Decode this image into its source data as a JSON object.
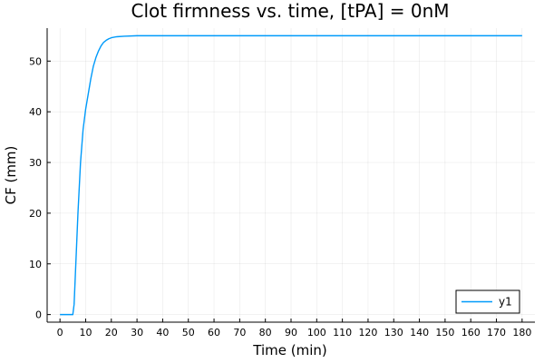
{
  "chart_data": {
    "type": "line",
    "title": "Clot firmness vs. time, [tPA] = 0nM",
    "xlabel": "Time (min)",
    "ylabel": "CF (mm)",
    "xlim": [
      -5,
      185
    ],
    "ylim": [
      -1.5,
      56.5
    ],
    "xticks": [
      0,
      10,
      20,
      30,
      40,
      50,
      60,
      70,
      80,
      90,
      100,
      110,
      120,
      130,
      140,
      150,
      160,
      170,
      180
    ],
    "yticks": [
      0,
      10,
      20,
      30,
      40,
      50
    ],
    "grid": true,
    "legend_position": "bottom-right",
    "series": [
      {
        "name": "y1",
        "color": "#009AFA",
        "x": [
          0,
          5,
          5.5,
          6,
          7,
          8,
          9,
          10,
          11,
          12,
          13,
          14,
          15,
          16,
          17,
          18,
          19,
          20,
          22,
          25,
          30,
          40,
          60,
          100,
          180
        ],
        "y": [
          0,
          0,
          2,
          8,
          20,
          30,
          36.5,
          40.5,
          43.5,
          46.5,
          49,
          50.7,
          52,
          53,
          53.7,
          54.1,
          54.4,
          54.6,
          54.8,
          54.9,
          55,
          55,
          55,
          55,
          55
        ]
      }
    ]
  }
}
